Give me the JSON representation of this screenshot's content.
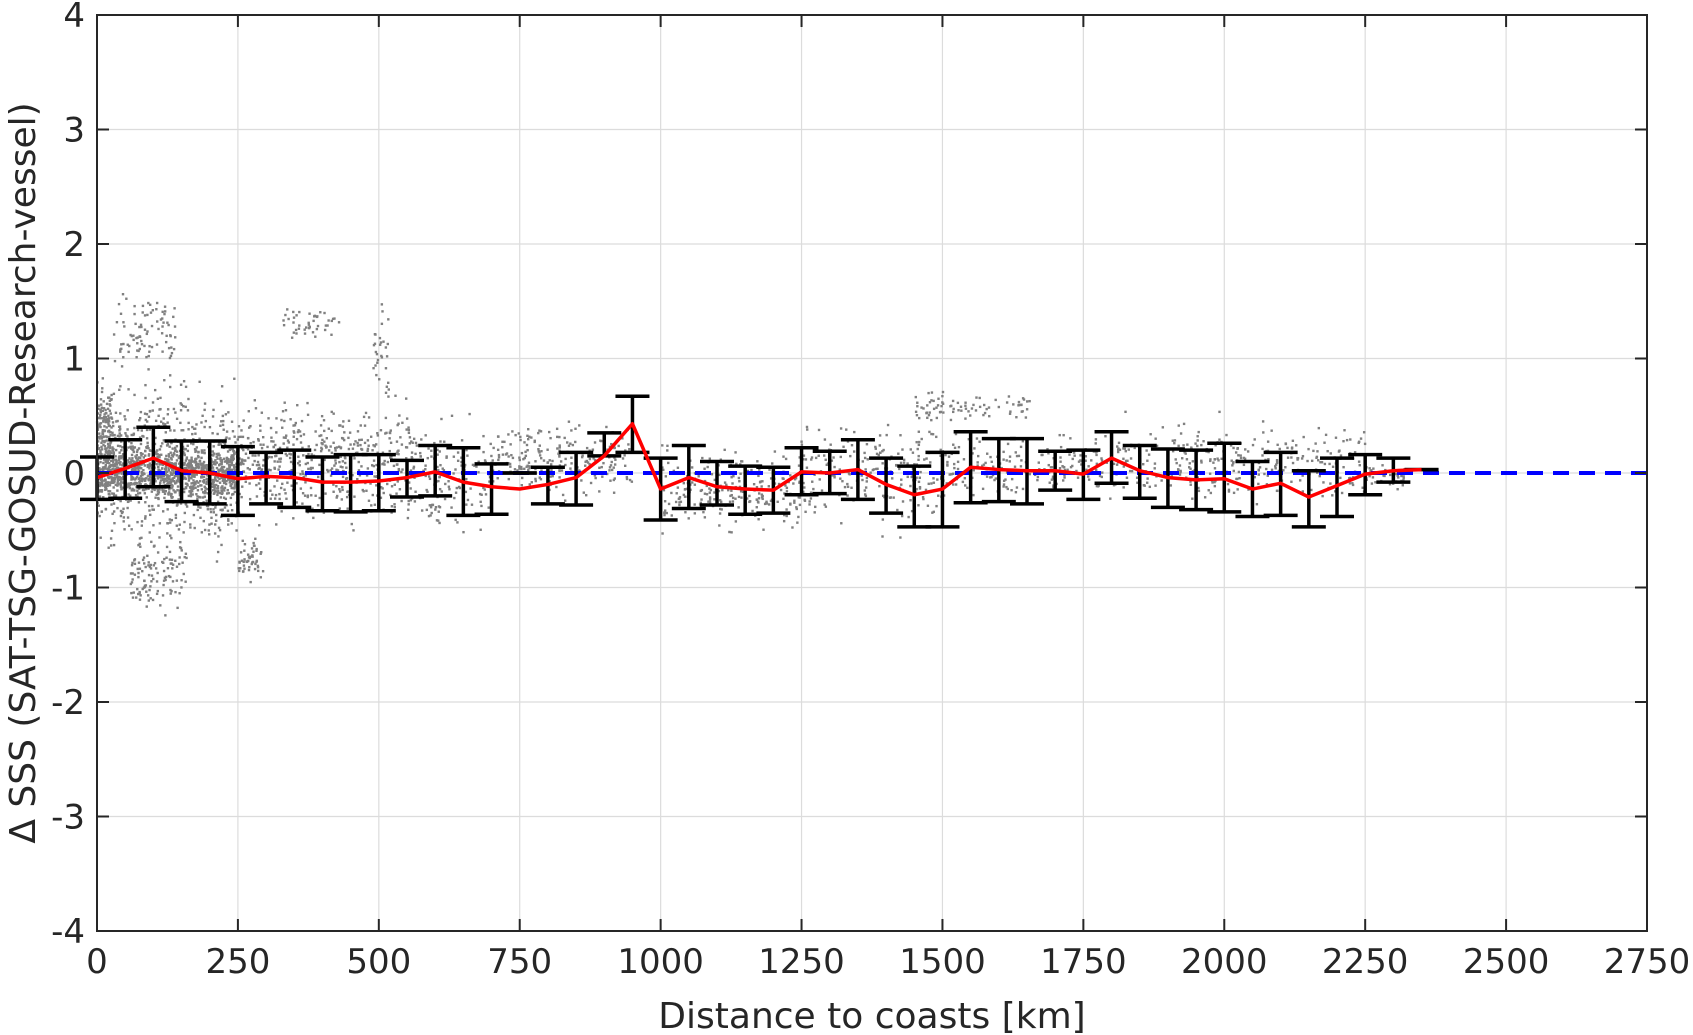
{
  "chart_data": {
    "type": "scatter",
    "title": "",
    "xlabel": "Distance to coasts [km]",
    "ylabel": "Δ SSS (SAT-TSG-GOSUD-Research-vessel)",
    "xlim": [
      0,
      2750
    ],
    "ylim": [
      -4,
      4
    ],
    "grid": true,
    "xticks": [
      0,
      250,
      500,
      750,
      1000,
      1250,
      1500,
      1750,
      2000,
      2250,
      2500,
      2750
    ],
    "yticks": [
      -4,
      -3,
      -2,
      -1,
      0,
      1,
      2,
      3,
      4
    ],
    "xtick_labels": [
      "0",
      "250",
      "500",
      "750",
      "1000",
      "1250",
      "1500",
      "1750",
      "2000",
      "2250",
      "2500",
      "2750"
    ],
    "ytick_labels": [
      "-4",
      "-3",
      "-2",
      "-1",
      "0",
      "1",
      "2",
      "3",
      "4"
    ],
    "colors": {
      "scatter": "#808080",
      "mean_line": "#ff0000",
      "error_bars": "#000000",
      "zero_line": "#0000ff",
      "axes": "#262626",
      "grid": "#dcdcdc"
    },
    "zero_line": {
      "y": 0,
      "style": "dashed"
    },
    "series": [
      {
        "kind": "binned_mean_with_error",
        "x": [
          0,
          50,
          100,
          150,
          200,
          250,
          300,
          350,
          400,
          450,
          500,
          550,
          600,
          650,
          700,
          750,
          800,
          850,
          900,
          950,
          1000,
          1050,
          1100,
          1150,
          1200,
          1250,
          1300,
          1350,
          1400,
          1450,
          1500,
          1550,
          1600,
          1650,
          1700,
          1750,
          1800,
          1850,
          1900,
          1950,
          2000,
          2050,
          2100,
          2150,
          2200,
          2250,
          2300,
          2350
        ],
        "mean": [
          -0.04,
          0.04,
          0.13,
          0.02,
          0.0,
          -0.05,
          -0.03,
          -0.04,
          -0.08,
          -0.08,
          -0.07,
          -0.04,
          0.01,
          -0.08,
          -0.12,
          -0.14,
          -0.1,
          -0.04,
          0.15,
          0.43,
          -0.14,
          -0.04,
          -0.12,
          -0.14,
          -0.15,
          0.01,
          0.0,
          0.03,
          -0.1,
          -0.19,
          -0.14,
          0.05,
          0.03,
          0.02,
          0.02,
          -0.01,
          0.13,
          0.02,
          -0.04,
          -0.06,
          -0.05,
          -0.14,
          -0.09,
          -0.21,
          -0.11,
          -0.01,
          0.02,
          0.03
        ],
        "lower": [
          -0.23,
          -0.22,
          -0.12,
          -0.25,
          -0.27,
          -0.37,
          -0.27,
          -0.3,
          -0.33,
          -0.34,
          -0.33,
          -0.21,
          -0.2,
          -0.37,
          -0.36,
          -0.0,
          -0.27,
          -0.28,
          0.15,
          0.18,
          -0.41,
          -0.31,
          -0.28,
          -0.36,
          -0.35,
          -0.19,
          -0.18,
          -0.23,
          -0.35,
          -0.47,
          -0.47,
          -0.26,
          -0.25,
          -0.27,
          -0.15,
          -0.23,
          -0.09,
          -0.22,
          -0.3,
          -0.32,
          -0.34,
          -0.38,
          -0.37,
          -0.47,
          -0.38,
          -0.19,
          -0.08,
          0.03
        ],
        "upper": [
          0.14,
          0.29,
          0.4,
          0.28,
          0.28,
          0.23,
          0.18,
          0.2,
          0.14,
          0.16,
          0.16,
          0.11,
          0.24,
          0.22,
          0.08,
          -0.0,
          0.05,
          0.18,
          0.35,
          0.67,
          0.13,
          0.24,
          0.1,
          0.06,
          0.05,
          0.22,
          0.19,
          0.29,
          0.13,
          0.06,
          0.18,
          0.36,
          0.3,
          0.3,
          0.19,
          0.2,
          0.36,
          0.24,
          0.21,
          0.2,
          0.26,
          0.1,
          0.18,
          0.02,
          0.13,
          0.16,
          0.13,
          0.03
        ]
      }
    ],
    "scatter_clusters": [
      {
        "x": [
          0,
          250
        ],
        "y": [
          -0.3,
          0.3
        ],
        "n": 900
      },
      {
        "x": [
          0,
          250
        ],
        "y": [
          -0.9,
          1.0
        ],
        "n": 700
      },
      {
        "x": [
          60,
          160
        ],
        "y": [
          -1.3,
          -0.4
        ],
        "n": 120
      },
      {
        "x": [
          30,
          140
        ],
        "y": [
          0.8,
          1.7
        ],
        "n": 90
      },
      {
        "x": [
          0,
          30
        ],
        "y": [
          -0.2,
          0.9
        ],
        "n": 120
      },
      {
        "x": [
          250,
          560
        ],
        "y": [
          -0.6,
          0.8
        ],
        "n": 500
      },
      {
        "x": [
          330,
          430
        ],
        "y": [
          1.1,
          1.5
        ],
        "n": 45
      },
      {
        "x": [
          490,
          520
        ],
        "y": [
          0.5,
          1.7
        ],
        "n": 30
      },
      {
        "x": [
          250,
          300
        ],
        "y": [
          -1.0,
          -0.5
        ],
        "n": 50
      },
      {
        "x": [
          560,
          700
        ],
        "y": [
          -0.7,
          0.6
        ],
        "n": 140
      },
      {
        "x": [
          700,
          950
        ],
        "y": [
          -0.3,
          0.55
        ],
        "n": 220
      },
      {
        "x": [
          1000,
          1250
        ],
        "y": [
          -0.6,
          0.3
        ],
        "n": 240
      },
      {
        "x": [
          1250,
          1500
        ],
        "y": [
          -0.6,
          0.6
        ],
        "n": 220
      },
      {
        "x": [
          1450,
          1660
        ],
        "y": [
          0.4,
          0.76
        ],
        "n": 80
      },
      {
        "x": [
          1500,
          1750
        ],
        "y": [
          -0.3,
          0.4
        ],
        "n": 160
      },
      {
        "x": [
          1750,
          2250
        ],
        "y": [
          -0.35,
          0.55
        ],
        "n": 360
      },
      {
        "x": [
          2250,
          2320
        ],
        "y": [
          -0.2,
          0.15
        ],
        "n": 40
      }
    ]
  }
}
